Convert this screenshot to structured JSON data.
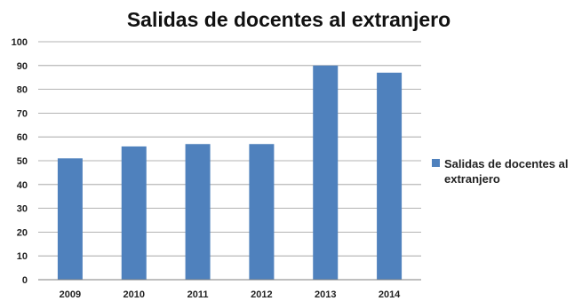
{
  "chart_data": {
    "type": "bar",
    "title": "Salidas de docentes al extranjero",
    "categories": [
      "2009",
      "2010",
      "2011",
      "2012",
      "2013",
      "2014"
    ],
    "series": [
      {
        "name": "Salidas de docentes al extranjero",
        "values": [
          51,
          56,
          57,
          57,
          90,
          87
        ],
        "color": "#4f81bd"
      }
    ],
    "xlabel": "",
    "ylabel": "",
    "ylim": [
      0,
      100
    ],
    "yticks": [
      "0",
      "10",
      "20",
      "30",
      "40",
      "50",
      "60",
      "70",
      "80",
      "90",
      "100"
    ],
    "grid": true,
    "legend_position": "right",
    "legend_label_lines": [
      "Salidas de docentes al",
      "extranjero"
    ]
  }
}
